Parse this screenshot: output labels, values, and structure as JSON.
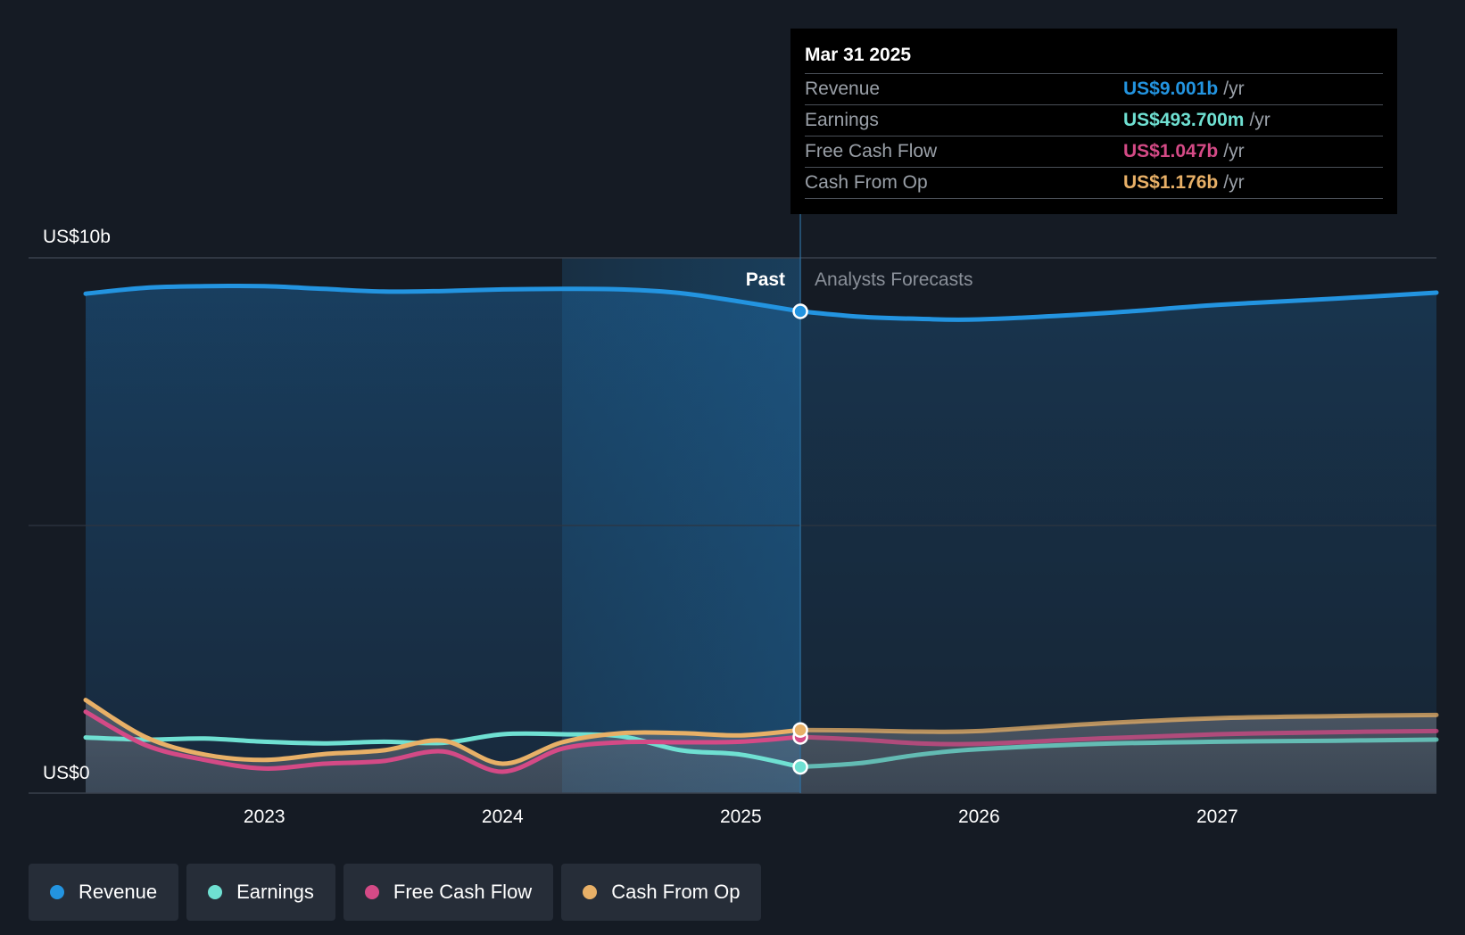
{
  "colors": {
    "revenue": "#2394e0",
    "earnings": "#6fe0d2",
    "fcf": "#d44a86",
    "cfo": "#e8b067",
    "background": "#151b24"
  },
  "tooltip": {
    "date": "Mar 31 2025",
    "rows": [
      {
        "label": "Revenue",
        "value": "US$9.001b",
        "unit": "/yr",
        "color": "#2394e0"
      },
      {
        "label": "Earnings",
        "value": "US$493.700m",
        "unit": "/yr",
        "color": "#6fe0d2"
      },
      {
        "label": "Free Cash Flow",
        "value": "US$1.047b",
        "unit": "/yr",
        "color": "#d44a86"
      },
      {
        "label": "Cash From Op",
        "value": "US$1.176b",
        "unit": "/yr",
        "color": "#e8b067"
      }
    ]
  },
  "chart_data": {
    "type": "line",
    "y_top_label": "US$10b",
    "y_bottom_label": "US$0",
    "past_label": "Past",
    "forecast_label": "Analysts Forecasts",
    "ylim": [
      0,
      10
    ],
    "xlim": [
      2022.25,
      2027.92
    ],
    "past_end_x": 2025.25,
    "highlight_start_x": 2024.25,
    "x_ticks": [
      {
        "x": 2023,
        "label": "2023"
      },
      {
        "x": 2024,
        "label": "2024"
      },
      {
        "x": 2025,
        "label": "2025"
      },
      {
        "x": 2026,
        "label": "2026"
      },
      {
        "x": 2027,
        "label": "2027"
      }
    ],
    "series": [
      {
        "name": "Revenue",
        "key": "revenue",
        "points": [
          [
            2022.25,
            9.33
          ],
          [
            2022.5,
            9.44
          ],
          [
            2022.75,
            9.47
          ],
          [
            2023.0,
            9.47
          ],
          [
            2023.25,
            9.42
          ],
          [
            2023.5,
            9.37
          ],
          [
            2023.75,
            9.38
          ],
          [
            2024.0,
            9.41
          ],
          [
            2024.25,
            9.42
          ],
          [
            2024.5,
            9.41
          ],
          [
            2024.75,
            9.34
          ],
          [
            2025.0,
            9.18
          ],
          [
            2025.25,
            9.0
          ],
          [
            2025.5,
            8.9
          ],
          [
            2025.75,
            8.86
          ],
          [
            2026.0,
            8.85
          ],
          [
            2026.5,
            8.96
          ],
          [
            2027.0,
            9.12
          ],
          [
            2027.5,
            9.24
          ],
          [
            2027.92,
            9.35
          ]
        ]
      },
      {
        "name": "Earnings",
        "key": "earnings",
        "points": [
          [
            2022.25,
            1.04
          ],
          [
            2022.5,
            1.0
          ],
          [
            2022.75,
            1.02
          ],
          [
            2023.0,
            0.96
          ],
          [
            2023.25,
            0.93
          ],
          [
            2023.5,
            0.96
          ],
          [
            2023.75,
            0.94
          ],
          [
            2024.0,
            1.1
          ],
          [
            2024.25,
            1.1
          ],
          [
            2024.5,
            1.06
          ],
          [
            2024.75,
            0.8
          ],
          [
            2025.0,
            0.72
          ],
          [
            2025.25,
            0.49
          ],
          [
            2025.5,
            0.56
          ],
          [
            2025.75,
            0.72
          ],
          [
            2026.0,
            0.82
          ],
          [
            2026.5,
            0.92
          ],
          [
            2027.0,
            0.96
          ],
          [
            2027.5,
            0.98
          ],
          [
            2027.92,
            1.0
          ]
        ]
      },
      {
        "name": "Free Cash Flow",
        "key": "fcf",
        "points": [
          [
            2022.25,
            1.52
          ],
          [
            2022.5,
            0.9
          ],
          [
            2022.75,
            0.62
          ],
          [
            2023.0,
            0.46
          ],
          [
            2023.25,
            0.55
          ],
          [
            2023.5,
            0.6
          ],
          [
            2023.75,
            0.78
          ],
          [
            2024.0,
            0.4
          ],
          [
            2024.25,
            0.83
          ],
          [
            2024.5,
            0.95
          ],
          [
            2024.75,
            0.95
          ],
          [
            2025.0,
            0.96
          ],
          [
            2025.25,
            1.05
          ],
          [
            2025.5,
            1.0
          ],
          [
            2025.75,
            0.93
          ],
          [
            2026.0,
            0.92
          ],
          [
            2026.5,
            1.02
          ],
          [
            2027.0,
            1.1
          ],
          [
            2027.5,
            1.14
          ],
          [
            2027.92,
            1.16
          ]
        ]
      },
      {
        "name": "Cash From Op",
        "key": "cfo",
        "points": [
          [
            2022.25,
            1.74
          ],
          [
            2022.5,
            1.05
          ],
          [
            2022.75,
            0.72
          ],
          [
            2023.0,
            0.62
          ],
          [
            2023.25,
            0.73
          ],
          [
            2023.5,
            0.8
          ],
          [
            2023.75,
            0.98
          ],
          [
            2024.0,
            0.55
          ],
          [
            2024.25,
            0.95
          ],
          [
            2024.5,
            1.12
          ],
          [
            2024.75,
            1.12
          ],
          [
            2025.0,
            1.08
          ],
          [
            2025.25,
            1.18
          ],
          [
            2025.5,
            1.17
          ],
          [
            2025.75,
            1.15
          ],
          [
            2026.0,
            1.16
          ],
          [
            2026.5,
            1.3
          ],
          [
            2027.0,
            1.4
          ],
          [
            2027.5,
            1.44
          ],
          [
            2027.92,
            1.46
          ]
        ]
      }
    ]
  },
  "legend": [
    {
      "label": "Revenue",
      "color": "#2394e0"
    },
    {
      "label": "Earnings",
      "color": "#6fe0d2"
    },
    {
      "label": "Free Cash Flow",
      "color": "#d44a86"
    },
    {
      "label": "Cash From Op",
      "color": "#e8b067"
    }
  ]
}
